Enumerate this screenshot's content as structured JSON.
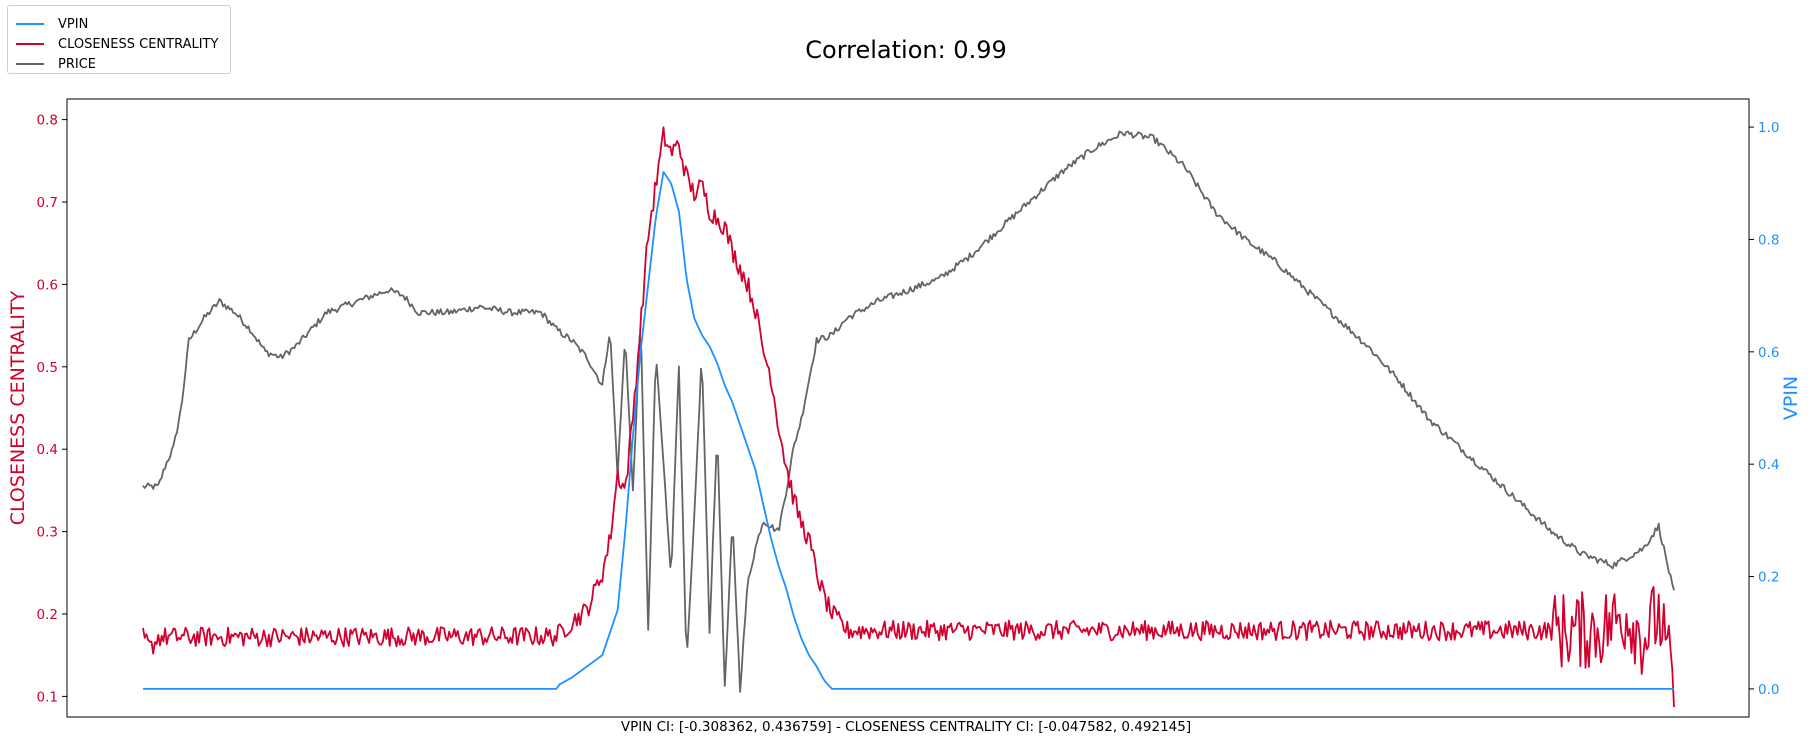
{
  "chart_data": {
    "type": "line",
    "title": "Correlation: 0.99",
    "footnote": "VPIN CI: [-0.308362, 0.436759] - CLOSENESS CENTRALITY CI: [-0.047582, 0.492145]",
    "legend_position": "upper-left (outside plot)",
    "grid": false,
    "colors": {
      "VPIN": "#1e90ff",
      "CLOSENESS CENTRALITY": "#d2002e",
      "PRICE": "#646464"
    },
    "left_axis": {
      "label": "CLOSENESS CENTRALITY",
      "color": "#d2002e",
      "ylim": [
        0.075,
        0.825
      ],
      "ticks": [
        0.1,
        0.2,
        0.3,
        0.4,
        0.5,
        0.6,
        0.7,
        0.8
      ],
      "tick_labels": [
        "0.1",
        "0.2",
        "0.3",
        "0.4",
        "0.5",
        "0.6",
        "0.7",
        "0.8"
      ]
    },
    "right_axis": {
      "label": "VPIN",
      "color": "#1e90ff",
      "ylim": [
        -0.05,
        1.05
      ],
      "ticks": [
        0.0,
        0.2,
        0.4,
        0.6,
        0.8,
        1.0
      ],
      "tick_labels": [
        "0.0",
        "0.2",
        "0.4",
        "0.6",
        "0.8",
        "1.0"
      ]
    },
    "x": {
      "range": [
        0,
        1
      ],
      "ticks_shown": false
    },
    "series": [
      {
        "name": "VPIN",
        "axis": "right",
        "points": [
          [
            0,
            0
          ],
          [
            0.27,
            0
          ],
          [
            0.272,
            0.008
          ],
          [
            0.28,
            0.02
          ],
          [
            0.29,
            0.04
          ],
          [
            0.3,
            0.06
          ],
          [
            0.31,
            0.14
          ],
          [
            0.315,
            0.28
          ],
          [
            0.32,
            0.45
          ],
          [
            0.325,
            0.6
          ],
          [
            0.33,
            0.72
          ],
          [
            0.335,
            0.84
          ],
          [
            0.34,
            0.92
          ],
          [
            0.345,
            0.9
          ],
          [
            0.35,
            0.85
          ],
          [
            0.355,
            0.73
          ],
          [
            0.36,
            0.66
          ],
          [
            0.365,
            0.63
          ],
          [
            0.37,
            0.61
          ],
          [
            0.375,
            0.58
          ],
          [
            0.38,
            0.54
          ],
          [
            0.385,
            0.51
          ],
          [
            0.39,
            0.47
          ],
          [
            0.395,
            0.43
          ],
          [
            0.4,
            0.39
          ],
          [
            0.405,
            0.33
          ],
          [
            0.41,
            0.27
          ],
          [
            0.415,
            0.22
          ],
          [
            0.42,
            0.18
          ],
          [
            0.425,
            0.13
          ],
          [
            0.43,
            0.09
          ],
          [
            0.435,
            0.06
          ],
          [
            0.44,
            0.04
          ],
          [
            0.445,
            0.015
          ],
          [
            0.45,
            0
          ],
          [
            1,
            0
          ]
        ]
      },
      {
        "name": "CLOSENESS CENTRALITY",
        "axis": "left",
        "baseline": 0.17,
        "noise": 0.012,
        "points": [
          [
            0,
            0.172
          ],
          [
            0.005,
            0.158
          ],
          [
            0.01,
            0.172
          ],
          [
            0.27,
            0.173
          ],
          [
            0.28,
            0.19
          ],
          [
            0.29,
            0.205
          ],
          [
            0.3,
            0.25
          ],
          [
            0.305,
            0.29
          ],
          [
            0.31,
            0.37
          ],
          [
            0.315,
            0.35
          ],
          [
            0.32,
            0.44
          ],
          [
            0.325,
            0.55
          ],
          [
            0.33,
            0.66
          ],
          [
            0.335,
            0.72
          ],
          [
            0.34,
            0.78
          ],
          [
            0.345,
            0.76
          ],
          [
            0.35,
            0.77
          ],
          [
            0.355,
            0.73
          ],
          [
            0.36,
            0.71
          ],
          [
            0.365,
            0.72
          ],
          [
            0.37,
            0.69
          ],
          [
            0.375,
            0.68
          ],
          [
            0.38,
            0.67
          ],
          [
            0.385,
            0.64
          ],
          [
            0.39,
            0.62
          ],
          [
            0.395,
            0.6
          ],
          [
            0.4,
            0.57
          ],
          [
            0.405,
            0.52
          ],
          [
            0.41,
            0.49
          ],
          [
            0.415,
            0.43
          ],
          [
            0.42,
            0.38
          ],
          [
            0.425,
            0.34
          ],
          [
            0.43,
            0.31
          ],
          [
            0.435,
            0.29
          ],
          [
            0.44,
            0.25
          ],
          [
            0.445,
            0.22
          ],
          [
            0.45,
            0.2
          ],
          [
            0.46,
            0.18
          ],
          [
            0.95,
            0.18
          ],
          [
            0.97,
            0.2
          ],
          [
            0.98,
            0.17
          ],
          [
            0.99,
            0.2
          ],
          [
            1,
            0.11
          ]
        ]
      },
      {
        "name": "PRICE",
        "axis": "right",
        "points": [
          [
            0,
            0.36
          ],
          [
            0.01,
            0.36
          ],
          [
            0.015,
            0.4
          ],
          [
            0.02,
            0.43
          ],
          [
            0.025,
            0.5
          ],
          [
            0.03,
            0.62
          ],
          [
            0.04,
            0.66
          ],
          [
            0.05,
            0.69
          ],
          [
            0.06,
            0.67
          ],
          [
            0.07,
            0.64
          ],
          [
            0.08,
            0.6
          ],
          [
            0.09,
            0.59
          ],
          [
            0.1,
            0.61
          ],
          [
            0.11,
            0.64
          ],
          [
            0.12,
            0.67
          ],
          [
            0.14,
            0.69
          ],
          [
            0.16,
            0.71
          ],
          [
            0.17,
            0.7
          ],
          [
            0.18,
            0.67
          ],
          [
            0.2,
            0.67
          ],
          [
            0.22,
            0.68
          ],
          [
            0.24,
            0.67
          ],
          [
            0.26,
            0.67
          ],
          [
            0.27,
            0.64
          ],
          [
            0.28,
            0.62
          ],
          [
            0.29,
            0.59
          ],
          [
            0.3,
            0.54
          ],
          [
            0.305,
            0.64
          ],
          [
            0.31,
            0.38
          ],
          [
            0.315,
            0.63
          ],
          [
            0.32,
            0.35
          ],
          [
            0.325,
            0.66
          ],
          [
            0.33,
            0.1
          ],
          [
            0.335,
            0.6
          ],
          [
            0.34,
            0.4
          ],
          [
            0.345,
            0.2
          ],
          [
            0.35,
            0.58
          ],
          [
            0.355,
            0.04
          ],
          [
            0.36,
            0.3
          ],
          [
            0.365,
            0.6
          ],
          [
            0.37,
            0.1
          ],
          [
            0.375,
            0.46
          ],
          [
            0.38,
            0
          ],
          [
            0.385,
            0.3
          ],
          [
            0.39,
            0.0
          ],
          [
            0.395,
            0.19
          ],
          [
            0.4,
            0.25
          ],
          [
            0.405,
            0.3
          ],
          [
            0.41,
            0.29
          ],
          [
            0.415,
            0.28
          ],
          [
            0.42,
            0.35
          ],
          [
            0.425,
            0.43
          ],
          [
            0.43,
            0.48
          ],
          [
            0.435,
            0.55
          ],
          [
            0.44,
            0.62
          ],
          [
            0.45,
            0.63
          ],
          [
            0.46,
            0.66
          ],
          [
            0.48,
            0.69
          ],
          [
            0.5,
            0.71
          ],
          [
            0.52,
            0.73
          ],
          [
            0.54,
            0.77
          ],
          [
            0.56,
            0.82
          ],
          [
            0.58,
            0.87
          ],
          [
            0.6,
            0.92
          ],
          [
            0.62,
            0.96
          ],
          [
            0.64,
            0.99
          ],
          [
            0.66,
            0.98
          ],
          [
            0.68,
            0.93
          ],
          [
            0.7,
            0.85
          ],
          [
            0.72,
            0.8
          ],
          [
            0.74,
            0.76
          ],
          [
            0.76,
            0.71
          ],
          [
            0.78,
            0.66
          ],
          [
            0.8,
            0.61
          ],
          [
            0.82,
            0.55
          ],
          [
            0.84,
            0.48
          ],
          [
            0.86,
            0.43
          ],
          [
            0.88,
            0.38
          ],
          [
            0.9,
            0.33
          ],
          [
            0.92,
            0.28
          ],
          [
            0.94,
            0.24
          ],
          [
            0.96,
            0.22
          ],
          [
            0.98,
            0.25
          ],
          [
            0.99,
            0.29
          ],
          [
            1,
            0.17
          ]
        ]
      }
    ]
  }
}
